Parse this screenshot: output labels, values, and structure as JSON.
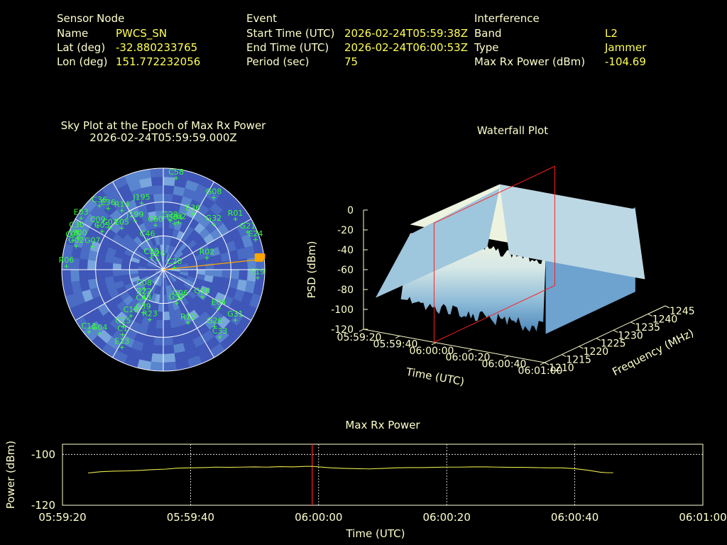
{
  "header": {
    "sensor_node": {
      "heading": "Sensor Node",
      "name_label": "Name",
      "name_value": "PWCS_SN",
      "lat_label": "Lat (deg)",
      "lat_value": "-32.880233765",
      "lon_label": "Lon (deg)",
      "lon_value": "151.772232056"
    },
    "event": {
      "heading": "Event",
      "start_label": "Start Time (UTC)",
      "start_value": "2026-02-24T05:59:38Z",
      "end_label": "End Time (UTC)",
      "end_value": "2026-02-24T06:00:53Z",
      "period_label": "Period (sec)",
      "period_value": "75"
    },
    "interference": {
      "heading": "Interference",
      "band_label": "Band",
      "band_value": "L2",
      "type_label": "Type",
      "type_value": "Jammer",
      "power_label": "Max Rx Power (dBm)",
      "power_value": "-104.69"
    }
  },
  "colors": {
    "label": "#ffffcc",
    "value": "#ffff55",
    "sat": "#33ff33",
    "jammer": "#ffa500",
    "marker": "#ff2020",
    "trace": "#e8e84a",
    "sky_fill_a": "#3f57b8",
    "sky_fill_b": "#5a86d0"
  },
  "chart_data": [
    {
      "type": "scatter",
      "title": "Sky Plot at the Epoch of Max Rx Power",
      "subtitle": "2026-02-24T05:59:59.000Z",
      "projection": "polar",
      "satellites": [
        {
          "id": "C58",
          "az": 8,
          "el": 8
        },
        {
          "id": "G08",
          "az": 35,
          "el": 12
        },
        {
          "id": "J195",
          "az": -18,
          "el": 28
        },
        {
          "id": "E36",
          "az": 28,
          "el": 34
        },
        {
          "id": "R01",
          "az": 55,
          "el": 12
        },
        {
          "id": "C36",
          "az": -45,
          "el": 10
        },
        {
          "id": "E36",
          "az": -42,
          "el": 17
        },
        {
          "id": "R14",
          "az": -35,
          "el": 26
        },
        {
          "id": "G32",
          "az": 48,
          "el": 30
        },
        {
          "id": "E03",
          "az": -58,
          "el": 4
        },
        {
          "id": "G22",
          "az": 8,
          "el": 46
        },
        {
          "id": "C62",
          "az": 18,
          "el": 46
        },
        {
          "id": "C09",
          "az": -56,
          "el": 20
        },
        {
          "id": "J199",
          "az": -30,
          "el": 40
        },
        {
          "id": "C60",
          "az": -10,
          "el": 50
        },
        {
          "id": "G04",
          "az": 14,
          "el": 48
        },
        {
          "id": "G21",
          "az": 66,
          "el": 8
        },
        {
          "id": "E24",
          "az": 72,
          "el": 4
        },
        {
          "id": "C03",
          "az": -52,
          "el": 30
        },
        {
          "id": "C30",
          "az": -66,
          "el": 6
        },
        {
          "id": "J200",
          "az": -70,
          "el": 10
        },
        {
          "id": "C05",
          "az": -58,
          "el": 26
        },
        {
          "id": "E05",
          "az": -45,
          "el": 38
        },
        {
          "id": "C46",
          "az": -28,
          "el": 60
        },
        {
          "id": "G02",
          "az": -75,
          "el": 10
        },
        {
          "id": "C06",
          "az": -72,
          "el": 6
        },
        {
          "id": "G07",
          "az": -72,
          "el": 24
        },
        {
          "id": "C38",
          "az": -45,
          "el": 75
        },
        {
          "id": "E26",
          "az": -30,
          "el": 80
        },
        {
          "id": "C20",
          "az": 80,
          "el": 80
        },
        {
          "id": "R02",
          "az": 75,
          "el": 50
        },
        {
          "id": "R06",
          "az": -88,
          "el": 4
        },
        {
          "id": "E19",
          "az": 95,
          "el": 6
        },
        {
          "id": "C08",
          "az": -135,
          "el": 66
        },
        {
          "id": "G06",
          "az": 150,
          "el": 60
        },
        {
          "id": "G16",
          "az": 125,
          "el": 48
        },
        {
          "id": "R22",
          "az": -145,
          "el": 60
        },
        {
          "id": "C48",
          "az": -150,
          "el": 55
        },
        {
          "id": "C39",
          "az": -155,
          "el": 48
        },
        {
          "id": "G37",
          "az": 158,
          "el": 58
        },
        {
          "id": "C19",
          "az": -145,
          "el": 40
        },
        {
          "id": "R23",
          "az": -165,
          "el": 44
        },
        {
          "id": "E04",
          "az": 125,
          "el": 30
        },
        {
          "id": "R12",
          "az": 155,
          "el": 38
        },
        {
          "id": "G26",
          "az": 138,
          "el": 22
        },
        {
          "id": "G31",
          "az": 125,
          "el": 12
        },
        {
          "id": "C15",
          "az": -145,
          "el": 28
        },
        {
          "id": "C1",
          "az": -148,
          "el": 22
        },
        {
          "id": "C33",
          "az": 140,
          "el": 12
        },
        {
          "id": "G04",
          "az": -135,
          "el": 10
        },
        {
          "id": "E13",
          "az": -152,
          "el": 12
        },
        {
          "id": "C11",
          "az": -130,
          "el": 4
        }
      ],
      "jammer": {
        "az": 84,
        "el": 2
      }
    },
    {
      "type": "area",
      "title": "Waterfall Plot",
      "xlabel": "Time (UTC)",
      "ylabel": "Frequency (MHz)",
      "zlabel": "PSD (dBm)",
      "time_ticks": [
        "05:59:20",
        "05:59:40",
        "06:00:00",
        "06:00:20",
        "06:00:40",
        "06:01:00"
      ],
      "freq_ticks": [
        "1210",
        "1215",
        "1220",
        "1225",
        "1230",
        "1235",
        "1240",
        "1245"
      ],
      "psd_ticks": [
        "0",
        "-20",
        "-40",
        "-60",
        "-80",
        "-100",
        "-120"
      ],
      "zlim": [
        -120,
        0
      ],
      "plateau_psd": -15,
      "noise_floor_psd": -100,
      "jammed_band_mhz": [
        1214,
        1240
      ],
      "jammed_time": [
        "05:59:38",
        "06:00:53"
      ],
      "max_power_time": "05:59:59"
    },
    {
      "type": "line",
      "title": "Max Rx Power",
      "xlabel": "Time (UTC)",
      "ylabel": "Power (dBm)",
      "x_ticks": [
        "05:59:20",
        "05:59:40",
        "06:00:00",
        "06:00:20",
        "06:00:40",
        "06:01:00"
      ],
      "y_ticks": [
        "-100",
        "-120"
      ],
      "xlim_sec": [
        0,
        100
      ],
      "ylim": [
        -120,
        -96
      ],
      "grid": true,
      "marker_time_sec": 39,
      "series": [
        {
          "x": [
            4,
            6,
            8,
            10,
            12,
            14,
            16,
            18,
            20,
            22,
            24,
            26,
            28,
            30,
            32,
            34,
            36,
            38,
            39,
            40,
            42,
            44,
            46,
            48,
            50,
            52,
            54,
            56,
            58,
            60,
            62,
            64,
            66,
            68,
            70,
            72,
            74,
            76,
            78,
            80,
            82,
            84,
            85,
            86
          ],
          "y": [
            -107.3,
            -106.8,
            -106.6,
            -106.5,
            -106.3,
            -106.0,
            -105.8,
            -105.4,
            -105.3,
            -105.2,
            -105.0,
            -105.1,
            -105.0,
            -104.9,
            -105.0,
            -104.8,
            -104.9,
            -104.7,
            -104.69,
            -104.9,
            -105.3,
            -105.5,
            -105.6,
            -105.7,
            -105.5,
            -105.3,
            -105.2,
            -105.2,
            -105.1,
            -105.0,
            -105.0,
            -104.9,
            -104.9,
            -105.0,
            -105.1,
            -105.1,
            -105.2,
            -105.3,
            -105.3,
            -105.6,
            -106.2,
            -107.0,
            -107.2,
            -107.2
          ]
        }
      ]
    }
  ]
}
